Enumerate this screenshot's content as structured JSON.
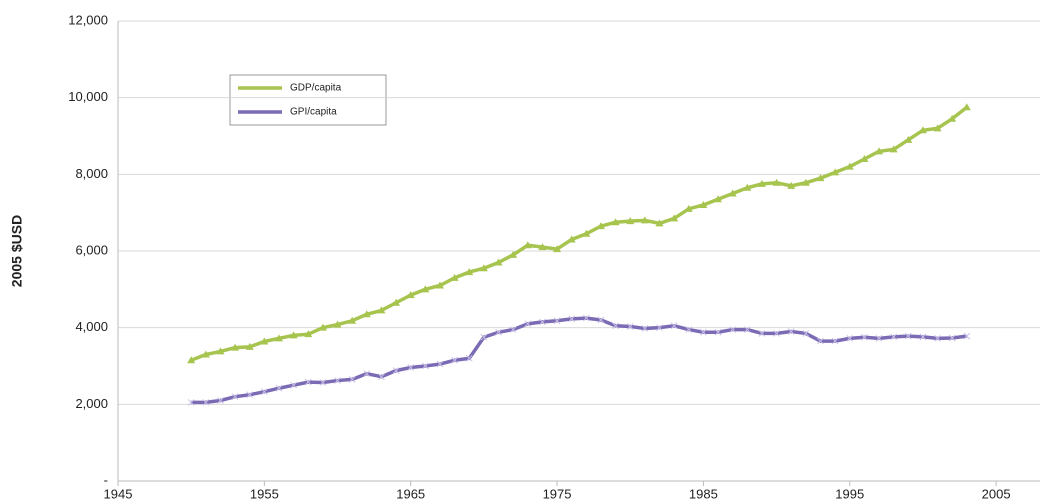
{
  "chart_data": {
    "type": "line",
    "y_label": "2005 $USD",
    "x": [
      1950,
      1951,
      1952,
      1953,
      1954,
      1955,
      1956,
      1957,
      1958,
      1959,
      1960,
      1961,
      1962,
      1963,
      1964,
      1965,
      1966,
      1967,
      1968,
      1969,
      1970,
      1971,
      1972,
      1973,
      1974,
      1975,
      1976,
      1977,
      1978,
      1979,
      1980,
      1981,
      1982,
      1983,
      1984,
      1985,
      1986,
      1987,
      1988,
      1989,
      1990,
      1991,
      1992,
      1993,
      1994,
      1995,
      1996,
      1997,
      1998,
      1999,
      2000,
      2001,
      2002,
      2003
    ],
    "series": [
      {
        "name": "GDP/capita",
        "color": "#a6c44e",
        "marker": "triangle",
        "values": [
          3150,
          3300,
          3380,
          3480,
          3500,
          3640,
          3720,
          3800,
          3830,
          4000,
          4080,
          4180,
          4350,
          4450,
          4650,
          4850,
          5000,
          5100,
          5300,
          5450,
          5550,
          5700,
          5900,
          6150,
          6100,
          6050,
          6300,
          6450,
          6650,
          6750,
          6780,
          6800,
          6720,
          6850,
          7100,
          7200,
          7350,
          7500,
          7650,
          7750,
          7780,
          7700,
          7780,
          7900,
          8050,
          8200,
          8400,
          8600,
          8650,
          8900,
          9150,
          9200,
          9450,
          9750
        ]
      },
      {
        "name": "GPI/capita",
        "color": "#7b6bb5",
        "marker": "cross",
        "values": [
          2050,
          2050,
          2100,
          2200,
          2250,
          2330,
          2420,
          2500,
          2580,
          2570,
          2620,
          2650,
          2800,
          2720,
          2880,
          2960,
          3000,
          3050,
          3150,
          3200,
          3750,
          3880,
          3950,
          4100,
          4150,
          4180,
          4230,
          4250,
          4200,
          4050,
          4030,
          3980,
          4000,
          4050,
          3950,
          3880,
          3880,
          3950,
          3950,
          3850,
          3850,
          3900,
          3850,
          3650,
          3650,
          3720,
          3750,
          3720,
          3760,
          3780,
          3760,
          3720,
          3730,
          3780
        ]
      }
    ],
    "xlim": [
      1945,
      2008
    ],
    "xticks": [
      1945,
      1955,
      1965,
      1975,
      1985,
      1995,
      2005
    ],
    "ylim": [
      0,
      12000
    ],
    "yticks": [
      {
        "value": 0,
        "label": "-"
      },
      {
        "value": 2000,
        "label": "2,000"
      },
      {
        "value": 4000,
        "label": "4,000"
      },
      {
        "value": 6000,
        "label": "6,000"
      },
      {
        "value": 8000,
        "label": "8,000"
      },
      {
        "value": 10000,
        "label": "10,000"
      },
      {
        "value": 12000,
        "label": "12,000"
      }
    ],
    "grid": true
  }
}
